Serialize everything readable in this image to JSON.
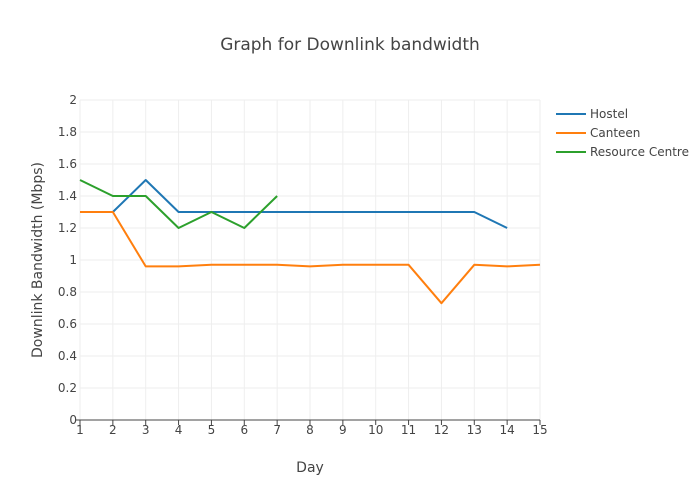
{
  "chart_data": {
    "type": "line",
    "title": "Graph for Downlink bandwidth",
    "xlabel": "Day",
    "ylabel": "Downlink Bandwidth (Mbps)",
    "xlim": [
      1,
      15
    ],
    "ylim": [
      0,
      2
    ],
    "x_ticks": [
      1,
      2,
      3,
      4,
      5,
      6,
      7,
      8,
      9,
      10,
      11,
      12,
      13,
      14,
      15
    ],
    "y_ticks": [
      0,
      0.2,
      0.4,
      0.6,
      0.8,
      1,
      1.2,
      1.4,
      1.6,
      1.8,
      2
    ],
    "y_tick_labels": [
      "0",
      "0.2",
      "0.4",
      "0.6",
      "0.8",
      "1",
      "1.2",
      "1.4",
      "1.6",
      "1.8",
      "2"
    ],
    "grid": true,
    "legend_position": "top-right",
    "series": [
      {
        "name": "Hostel",
        "color": "#1f77b4",
        "x": [
          1,
          2,
          3,
          4,
          5,
          6,
          7,
          8,
          9,
          10,
          11,
          12,
          13,
          14
        ],
        "y": [
          1.3,
          1.3,
          1.5,
          1.3,
          1.3,
          1.3,
          1.3,
          1.3,
          1.3,
          1.3,
          1.3,
          1.3,
          1.3,
          1.2
        ]
      },
      {
        "name": "Canteen",
        "color": "#ff7f0e",
        "x": [
          1,
          2,
          3,
          4,
          5,
          6,
          7,
          8,
          9,
          10,
          11,
          12,
          13,
          14,
          15
        ],
        "y": [
          1.3,
          1.3,
          0.96,
          0.96,
          0.97,
          0.97,
          0.97,
          0.96,
          0.97,
          0.97,
          0.97,
          0.73,
          0.97,
          0.96,
          0.97
        ]
      },
      {
        "name": "Resource Centre",
        "color": "#2ca02c",
        "x": [
          1,
          2,
          3,
          4,
          5,
          6,
          7
        ],
        "y": [
          1.5,
          1.4,
          1.4,
          1.2,
          1.3,
          1.2,
          1.4
        ]
      }
    ]
  }
}
